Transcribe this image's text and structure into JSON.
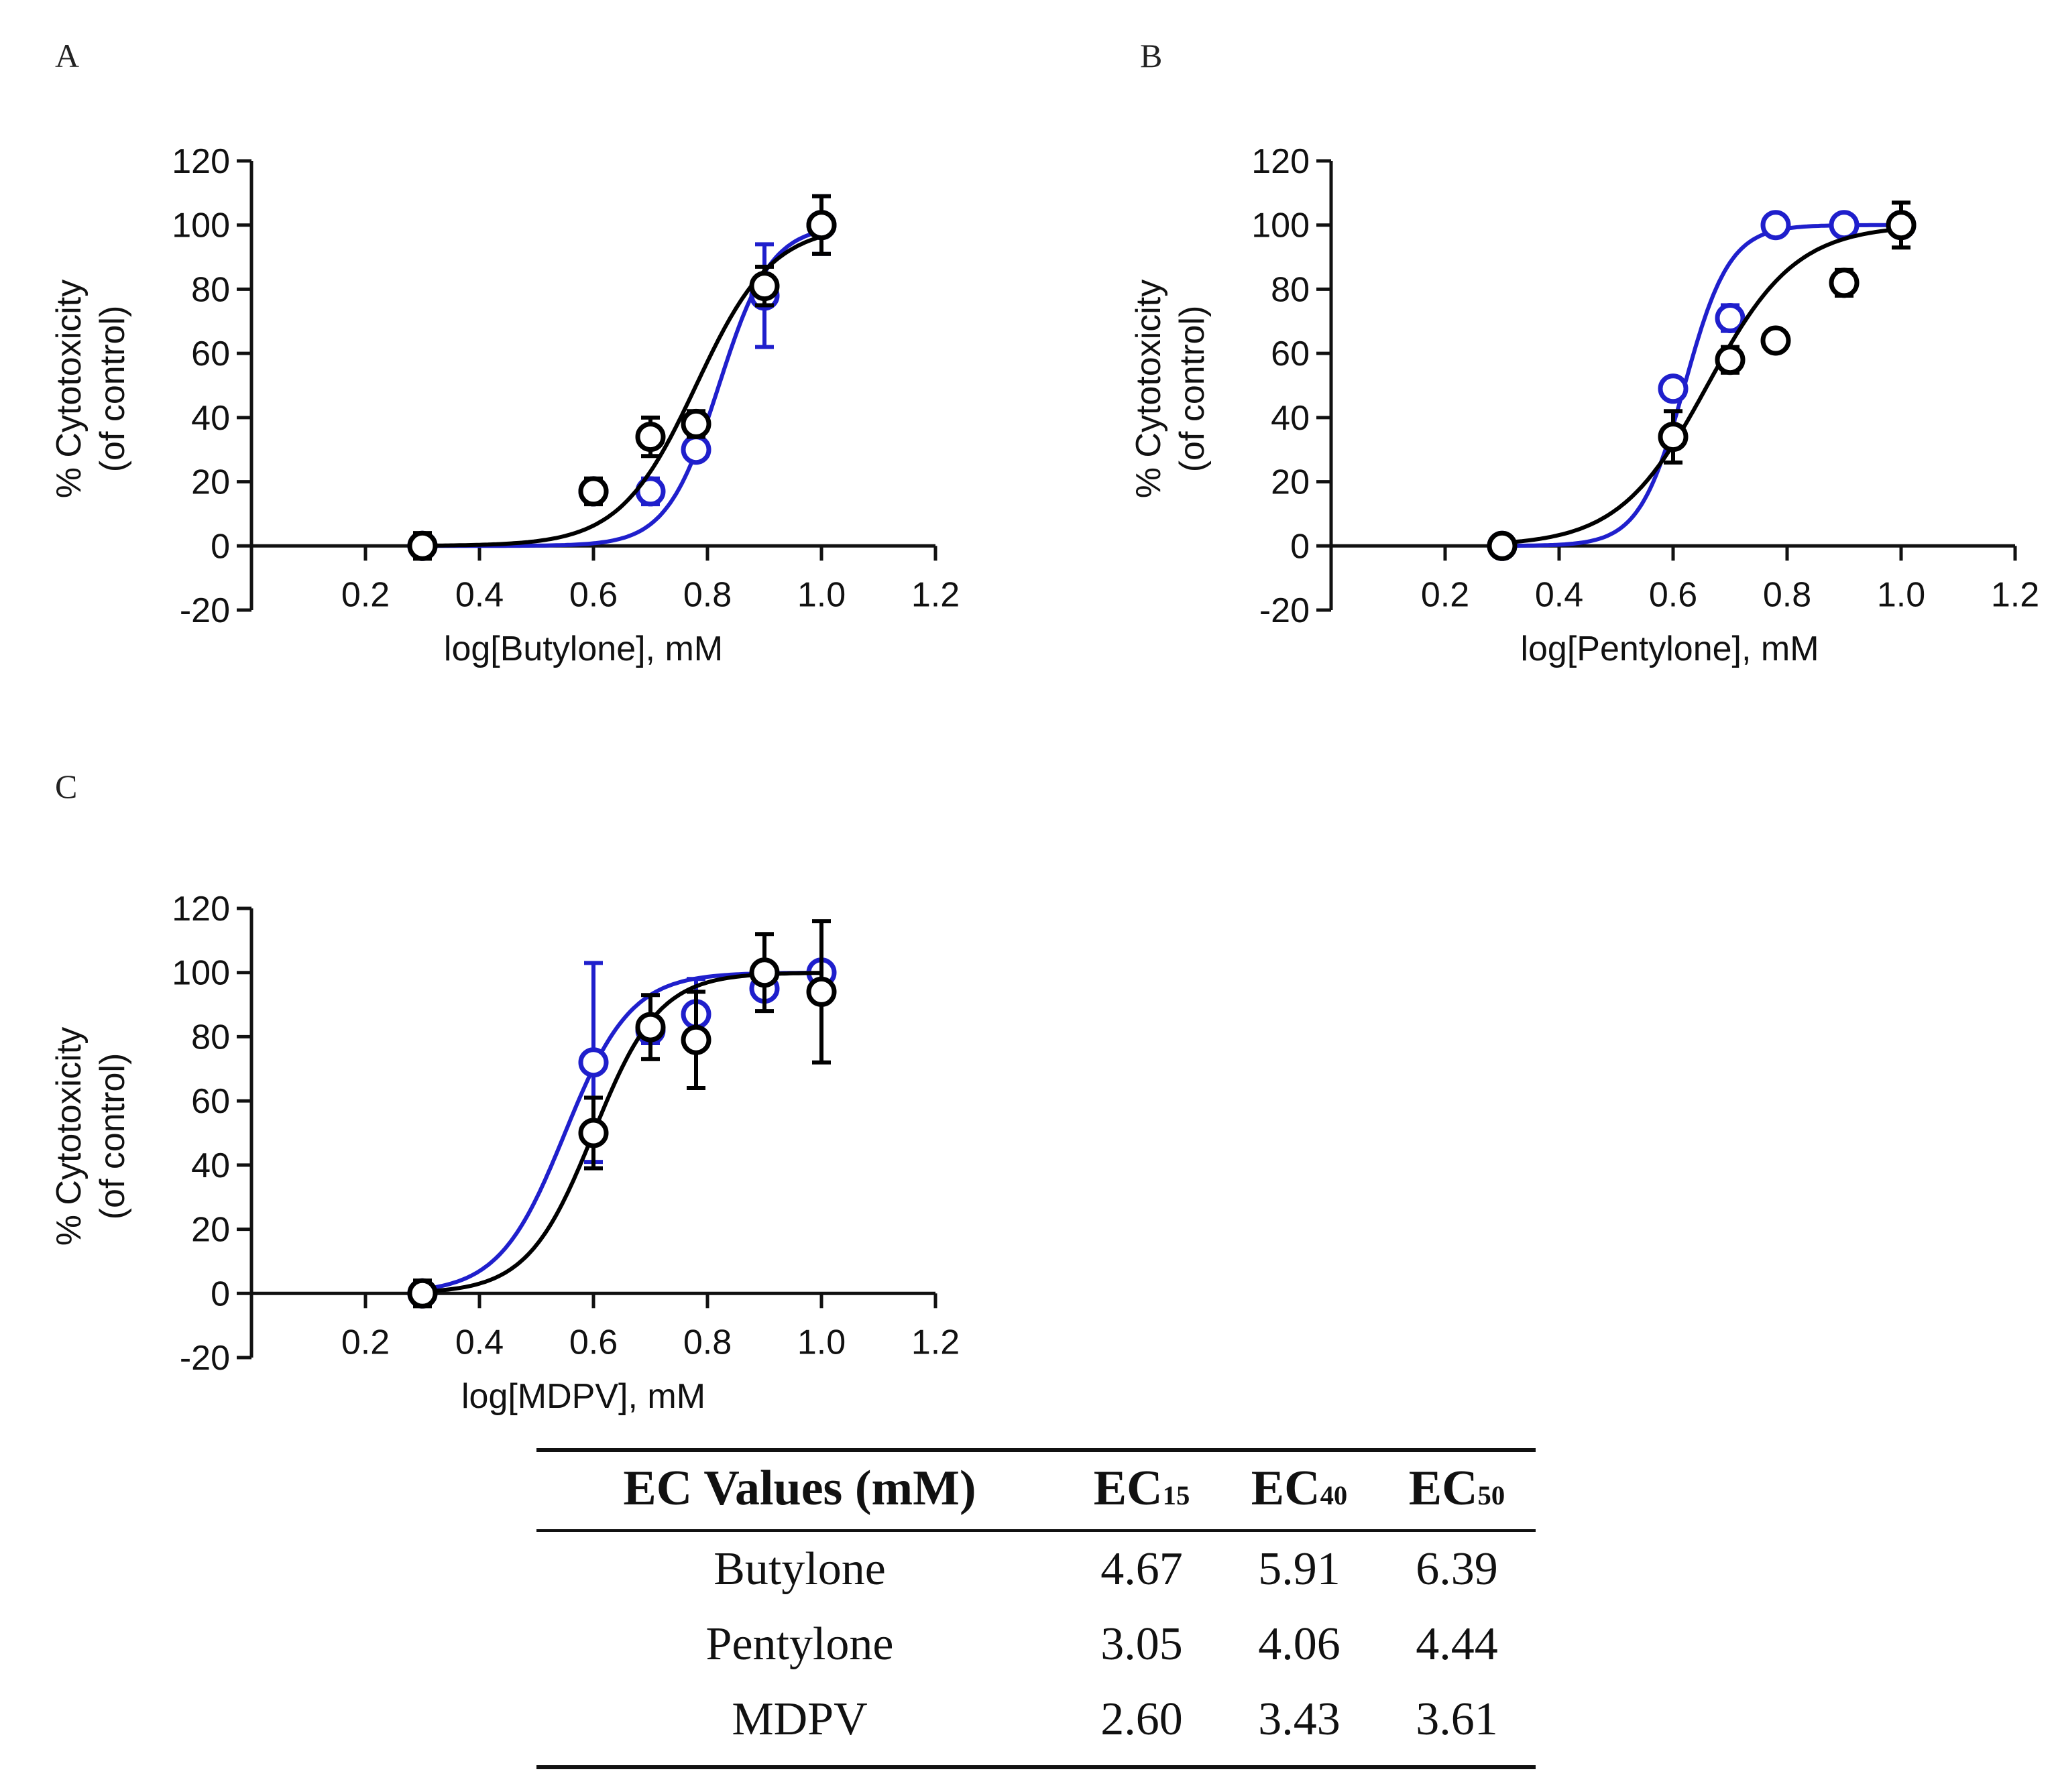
{
  "chart_data": [
    {
      "panel": "A",
      "type": "scatter",
      "xlabel": "log[Butylone], mM",
      "ylabel": "% Cytotoxicity",
      "ylabel2": "(of control)",
      "xlim": [
        0,
        1.2
      ],
      "ylim": [
        -20,
        120
      ],
      "xticks": [
        "0.2",
        "0.4",
        "0.6",
        "0.8",
        "1.0",
        "1.2"
      ],
      "yticks": [
        "-20",
        "0",
        "20",
        "40",
        "60",
        "80",
        "100",
        "120"
      ],
      "series": [
        {
          "color": "#1f1fcc",
          "x": [
            0.3,
            0.6,
            0.7,
            0.78,
            0.9,
            1.0
          ],
          "y": [
            0,
            17,
            17,
            30,
            78,
            100
          ],
          "err": [
            1,
            2,
            4,
            2,
            16,
            9
          ],
          "fit": {
            "ec50": 0.82,
            "hill": 9.5
          }
        },
        {
          "color": "#000000",
          "x": [
            0.3,
            0.6,
            0.7,
            0.78,
            0.9,
            1.0
          ],
          "y": [
            0,
            17,
            34,
            38,
            81,
            100
          ],
          "err": [
            4,
            4,
            6,
            4,
            6,
            9
          ],
          "fit": {
            "ec50": 0.78,
            "hill": 6.5
          }
        }
      ]
    },
    {
      "panel": "B",
      "type": "scatter",
      "xlabel": "log[Pentylone], mM",
      "ylabel": "% Cytotoxicity",
      "ylabel2": "(of control)",
      "xlim": [
        0,
        1.2
      ],
      "ylim": [
        -20,
        120
      ],
      "xticks": [
        "0.2",
        "0.4",
        "0.6",
        "0.8",
        "1.0",
        "1.2"
      ],
      "yticks": [
        "-20",
        "0",
        "20",
        "40",
        "60",
        "80",
        "100",
        "120"
      ],
      "series": [
        {
          "color": "#1f1fcc",
          "x": [
            0.3,
            0.6,
            0.7,
            0.78,
            0.9,
            1.0
          ],
          "y": [
            0,
            49,
            71,
            100,
            100,
            100
          ],
          "err": [
            1,
            2,
            4,
            1,
            1,
            2
          ],
          "fit": {
            "ec50": 0.62,
            "hill": 11
          }
        },
        {
          "color": "#000000",
          "x": [
            0.3,
            0.6,
            0.7,
            0.78,
            0.9,
            1.0
          ],
          "y": [
            0,
            34,
            58,
            64,
            82,
            100
          ],
          "err": [
            1,
            8,
            4,
            1,
            4,
            7
          ],
          "fit": {
            "ec50": 0.66,
            "hill": 5.6
          }
        }
      ]
    },
    {
      "panel": "C",
      "type": "scatter",
      "xlabel": "log[MDPV], mM",
      "ylabel": "% Cytotoxicity",
      "ylabel2": "(of control)",
      "xlim": [
        0,
        1.2
      ],
      "ylim": [
        -20,
        120
      ],
      "xticks": [
        "0.2",
        "0.4",
        "0.6",
        "0.8",
        "1.0",
        "1.2"
      ],
      "yticks": [
        "-20",
        "0",
        "20",
        "40",
        "60",
        "80",
        "100",
        "120"
      ],
      "series": [
        {
          "color": "#1f1fcc",
          "x": [
            0.3,
            0.6,
            0.7,
            0.78,
            0.9,
            1.0
          ],
          "y": [
            0,
            72,
            82,
            87,
            95,
            100
          ],
          "err": [
            1,
            31,
            4,
            11,
            3,
            2
          ],
          "fit": {
            "ec50": 0.55,
            "hill": 7.5
          }
        },
        {
          "color": "#000000",
          "x": [
            0.3,
            0.6,
            0.7,
            0.78,
            0.9,
            1.0
          ],
          "y": [
            0,
            50,
            83,
            79,
            100,
            94
          ],
          "err": [
            4,
            11,
            10,
            15,
            12,
            22
          ],
          "fit": {
            "ec50": 0.6,
            "hill": 7.5
          }
        }
      ]
    }
  ],
  "table": {
    "header": {
      "col0": "EC Values (mM)",
      "ec15": {
        "base": "EC",
        "sub": "15"
      },
      "ec40": {
        "base": "EC",
        "sub": "40"
      },
      "ec50": {
        "base": "EC",
        "sub": "50"
      }
    },
    "rows": [
      {
        "name": "Butylone",
        "ec15": "4.67",
        "ec40": "5.91",
        "ec50": "6.39"
      },
      {
        "name": "Pentylone",
        "ec15": "3.05",
        "ec40": "4.06",
        "ec50": "4.44"
      },
      {
        "name": "MDPV",
        "ec15": "2.60",
        "ec40": "3.43",
        "ec50": "3.61"
      }
    ]
  }
}
